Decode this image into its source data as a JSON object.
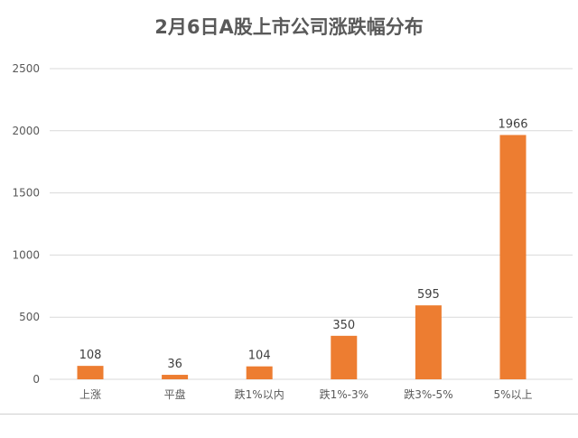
{
  "chart_data": {
    "type": "bar",
    "title": "2月6日A股上市公司涨跌幅分布",
    "categories": [
      "上涨",
      "平盘",
      "跌1%以内",
      "跌1%-3%",
      "跌3%-5%",
      "5%以上"
    ],
    "values": [
      108,
      36,
      104,
      350,
      595,
      1966
    ],
    "data_labels": [
      "108",
      "36",
      "104",
      "350",
      "595",
      "1966"
    ],
    "y_ticks": [
      0,
      500,
      1000,
      1500,
      2000,
      2500
    ],
    "y_tick_labels": [
      "0",
      "500",
      "1000",
      "1500",
      "2000",
      "2500"
    ],
    "ylim": [
      0,
      2500
    ],
    "grid": true,
    "legend": "none",
    "xlabel": "",
    "ylabel": "",
    "bar_color": "#ED7D31"
  }
}
